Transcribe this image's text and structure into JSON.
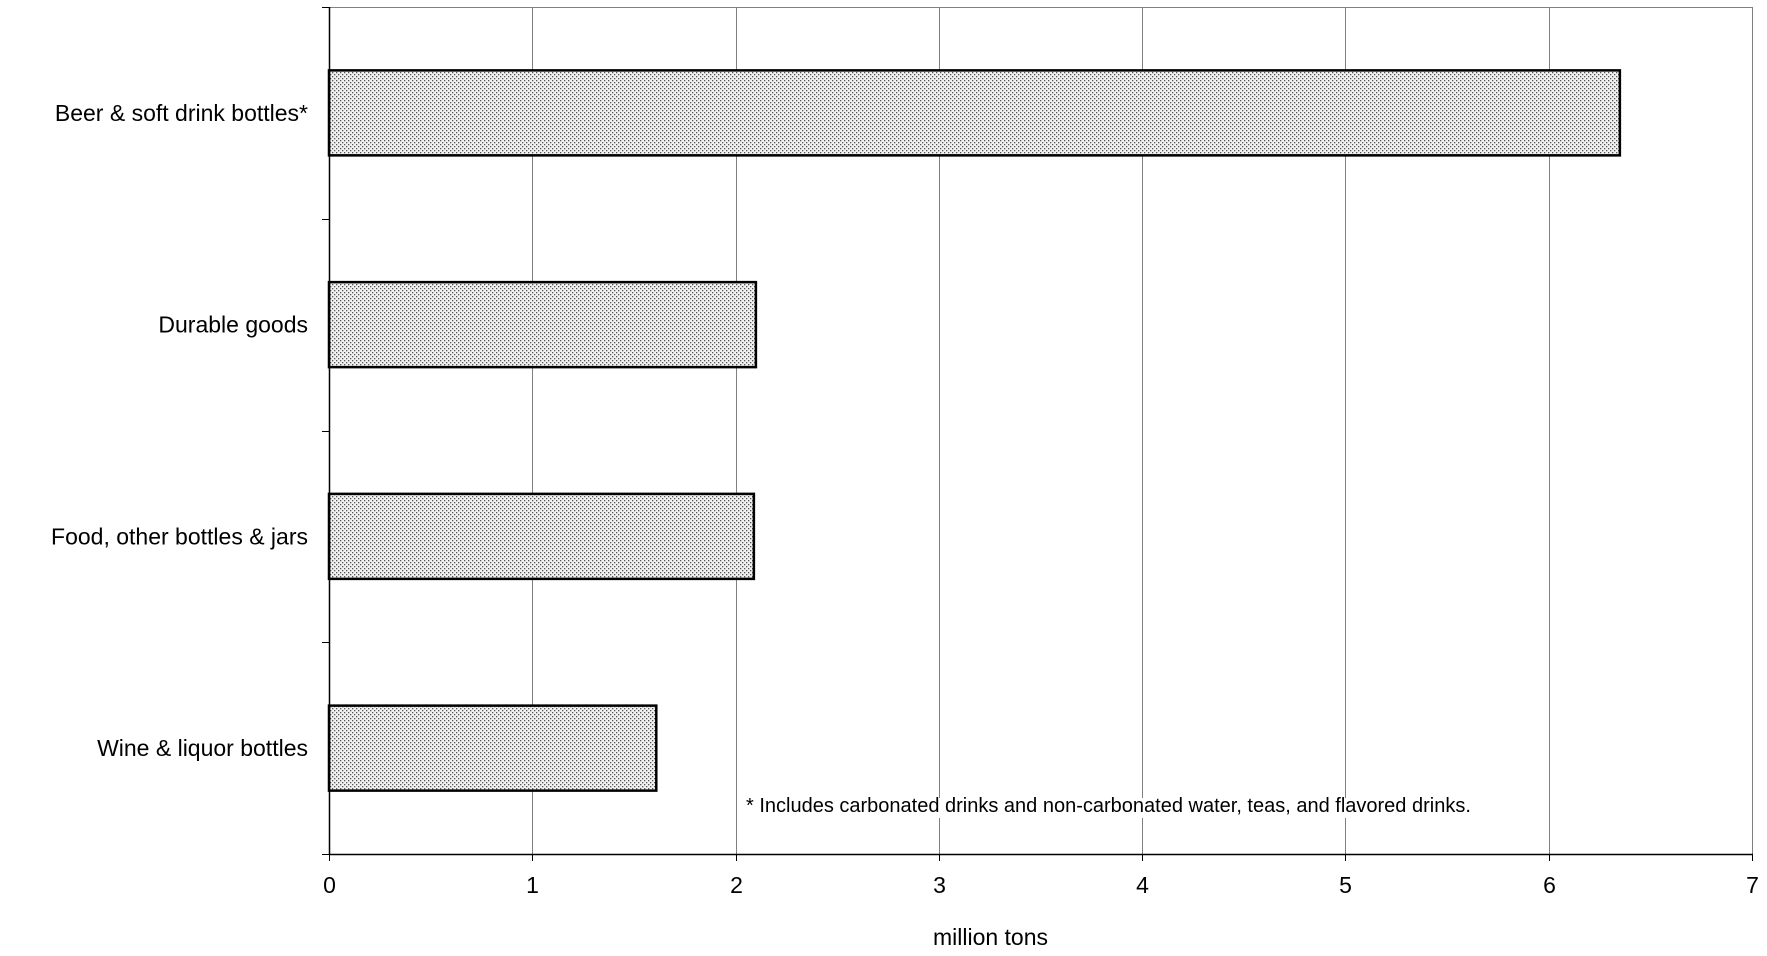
{
  "chart_data": {
    "type": "bar",
    "orientation": "horizontal",
    "categories": [
      "Beer & soft drink bottles*",
      "Durable goods",
      "Food, other bottles & jars",
      "Wine & liquor bottles"
    ],
    "values": [
      6.35,
      2.1,
      2.09,
      1.61
    ],
    "xlabel": "million tons",
    "ylabel": "",
    "xlim": [
      0,
      7
    ],
    "xticks": [
      "0",
      "1",
      "2",
      "3",
      "4",
      "5",
      "6",
      "7"
    ],
    "grid": "vertical gridlines",
    "legend": "none",
    "annotation": "* Includes carbonated drinks and non-carbonated water, teas, and flavored drinks.",
    "colors": {
      "bar_fill": "#f2f2f2",
      "bar_dots": "#555555",
      "bar_stroke": "#000000",
      "gridline": "#808080",
      "axis": "#000000"
    }
  }
}
